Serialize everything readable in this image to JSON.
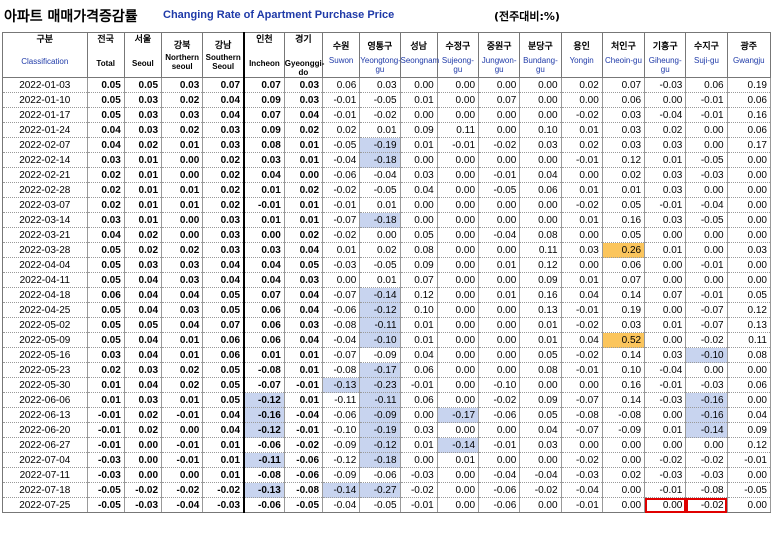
{
  "title": {
    "korean": "아파트 매매가격증감률",
    "english": "Changing Rate of Apartment Purchase Price",
    "unit": "(전주대비:%)"
  },
  "columns": [
    {
      "ko": "구분",
      "en": "Classification"
    },
    {
      "ko": "전국",
      "en": "Total"
    },
    {
      "ko": "서울",
      "en": "Seoul"
    },
    {
      "ko": "강북",
      "en": "Northern seoul"
    },
    {
      "ko": "강남",
      "en": "Southern Seoul"
    },
    {
      "ko": "인천",
      "en": "Incheon"
    },
    {
      "ko": "경기",
      "en": "Gyeonggi-do"
    },
    {
      "ko": "수원",
      "en": "Suwon"
    },
    {
      "ko": "영통구",
      "en": "Yeongtong-gu"
    },
    {
      "ko": "성남",
      "en": "Seongnam"
    },
    {
      "ko": "수정구",
      "en": "Sujeong-gu"
    },
    {
      "ko": "중원구",
      "en": "Jungwon-gu"
    },
    {
      "ko": "분당구",
      "en": "Bundang-gu"
    },
    {
      "ko": "용인",
      "en": "Yongin"
    },
    {
      "ko": "처인구",
      "en": "Cheoin-gu"
    },
    {
      "ko": "기흥구",
      "en": "Giheung-gu"
    },
    {
      "ko": "수지구",
      "en": "Suji-gu"
    },
    {
      "ko": "광주",
      "en": "Gwangju"
    }
  ],
  "highlight_colors": {
    "blue": "#c8d4ef",
    "orange": "#fbc55c",
    "red_box": "#e00000"
  },
  "rows": [
    {
      "date": "2022-01-03",
      "values": [
        "0.05",
        "0.05",
        "0.03",
        "0.07",
        "0.07",
        "0.03",
        "0.06",
        "0.03",
        "0.00",
        "0.00",
        "0.00",
        "0.00",
        "0.02",
        "0.07",
        "-0.03",
        "0.06",
        "0.19"
      ]
    },
    {
      "date": "2022-01-10",
      "values": [
        "0.05",
        "0.03",
        "0.02",
        "0.04",
        "0.09",
        "0.03",
        "-0.01",
        "-0.05",
        "0.01",
        "0.00",
        "0.07",
        "0.00",
        "0.00",
        "0.06",
        "0.00",
        "-0.01",
        "0.06"
      ]
    },
    {
      "date": "2022-01-17",
      "values": [
        "0.05",
        "0.03",
        "0.03",
        "0.04",
        "0.07",
        "0.04",
        "-0.01",
        "-0.02",
        "0.00",
        "0.00",
        "0.00",
        "0.00",
        "-0.02",
        "0.03",
        "-0.04",
        "-0.01",
        "0.16"
      ]
    },
    {
      "date": "2022-01-24",
      "values": [
        "0.04",
        "0.03",
        "0.02",
        "0.03",
        "0.09",
        "0.02",
        "0.02",
        "0.01",
        "0.09",
        "0.11",
        "0.00",
        "0.10",
        "0.01",
        "0.03",
        "0.02",
        "0.00",
        "0.06"
      ]
    },
    {
      "date": "2022-02-07",
      "values": [
        "0.04",
        "0.02",
        "0.01",
        "0.03",
        "0.08",
        "0.01",
        "-0.05",
        "-0.19",
        "0.01",
        "-0.01",
        "-0.02",
        "0.03",
        "0.02",
        "0.03",
        "0.03",
        "0.00",
        "0.17"
      ]
    },
    {
      "date": "2022-02-14",
      "values": [
        "0.03",
        "0.01",
        "0.00",
        "0.02",
        "0.03",
        "0.01",
        "-0.04",
        "-0.18",
        "0.00",
        "0.00",
        "0.00",
        "0.00",
        "-0.01",
        "0.12",
        "0.01",
        "-0.05",
        "0.00"
      ]
    },
    {
      "date": "2022-02-21",
      "values": [
        "0.02",
        "0.01",
        "0.00",
        "0.02",
        "0.04",
        "0.00",
        "-0.06",
        "-0.04",
        "0.03",
        "0.00",
        "-0.01",
        "0.04",
        "0.00",
        "0.02",
        "0.03",
        "-0.03",
        "0.00"
      ]
    },
    {
      "date": "2022-02-28",
      "values": [
        "0.02",
        "0.01",
        "0.01",
        "0.02",
        "0.01",
        "0.02",
        "-0.02",
        "-0.05",
        "0.04",
        "0.00",
        "-0.05",
        "0.06",
        "0.01",
        "0.01",
        "0.03",
        "0.00",
        "0.00"
      ]
    },
    {
      "date": "2022-03-07",
      "values": [
        "0.02",
        "0.01",
        "0.01",
        "0.02",
        "-0.01",
        "0.01",
        "-0.01",
        "0.01",
        "0.00",
        "0.00",
        "0.00",
        "0.00",
        "-0.02",
        "0.05",
        "-0.01",
        "-0.04",
        "0.00"
      ]
    },
    {
      "date": "2022-03-14",
      "values": [
        "0.03",
        "0.01",
        "0.00",
        "0.03",
        "0.01",
        "0.01",
        "-0.07",
        "-0.18",
        "0.00",
        "0.00",
        "0.00",
        "0.00",
        "0.01",
        "0.16",
        "0.03",
        "-0.05",
        "0.00"
      ]
    },
    {
      "date": "2022-03-21",
      "values": [
        "0.04",
        "0.02",
        "0.00",
        "0.03",
        "0.00",
        "0.02",
        "-0.02",
        "0.00",
        "0.05",
        "0.00",
        "-0.04",
        "0.08",
        "0.00",
        "0.05",
        "0.00",
        "0.00",
        "0.00"
      ]
    },
    {
      "date": "2022-03-28",
      "values": [
        "0.05",
        "0.02",
        "0.02",
        "0.03",
        "0.03",
        "0.04",
        "0.01",
        "0.02",
        "0.08",
        "0.00",
        "0.00",
        "0.11",
        "0.03",
        "0.26",
        "0.01",
        "0.00",
        "0.03"
      ]
    },
    {
      "date": "2022-04-04",
      "values": [
        "0.05",
        "0.03",
        "0.03",
        "0.04",
        "0.04",
        "0.05",
        "-0.03",
        "-0.05",
        "0.09",
        "0.00",
        "0.01",
        "0.12",
        "0.00",
        "0.06",
        "0.00",
        "-0.01",
        "0.00"
      ]
    },
    {
      "date": "2022-04-11",
      "values": [
        "0.05",
        "0.04",
        "0.03",
        "0.04",
        "0.04",
        "0.03",
        "0.00",
        "0.01",
        "0.07",
        "0.00",
        "0.00",
        "0.09",
        "0.01",
        "0.07",
        "0.00",
        "0.00",
        "0.00"
      ]
    },
    {
      "date": "2022-04-18",
      "values": [
        "0.06",
        "0.04",
        "0.04",
        "0.05",
        "0.07",
        "0.04",
        "-0.07",
        "-0.14",
        "0.12",
        "0.00",
        "0.01",
        "0.16",
        "0.04",
        "0.14",
        "0.07",
        "-0.01",
        "0.05"
      ]
    },
    {
      "date": "2022-04-25",
      "values": [
        "0.05",
        "0.04",
        "0.03",
        "0.05",
        "0.06",
        "0.04",
        "-0.06",
        "-0.12",
        "0.10",
        "0.00",
        "0.00",
        "0.13",
        "-0.01",
        "0.19",
        "0.00",
        "-0.07",
        "0.12"
      ]
    },
    {
      "date": "2022-05-02",
      "values": [
        "0.05",
        "0.05",
        "0.04",
        "0.07",
        "0.06",
        "0.03",
        "-0.08",
        "-0.11",
        "0.01",
        "0.00",
        "0.00",
        "0.01",
        "-0.02",
        "0.03",
        "0.01",
        "-0.07",
        "0.13"
      ]
    },
    {
      "date": "2022-05-09",
      "values": [
        "0.05",
        "0.04",
        "0.01",
        "0.06",
        "0.06",
        "0.04",
        "-0.04",
        "-0.10",
        "0.01",
        "0.00",
        "0.00",
        "0.01",
        "0.04",
        "0.52",
        "0.00",
        "-0.02",
        "0.11"
      ]
    },
    {
      "date": "2022-05-16",
      "values": [
        "0.03",
        "0.04",
        "0.01",
        "0.06",
        "0.01",
        "0.01",
        "-0.07",
        "-0.09",
        "0.04",
        "0.00",
        "0.00",
        "0.05",
        "-0.02",
        "0.14",
        "0.03",
        "-0.10",
        "0.08"
      ]
    },
    {
      "date": "2022-05-23",
      "values": [
        "0.02",
        "0.03",
        "0.02",
        "0.05",
        "-0.08",
        "0.01",
        "-0.08",
        "-0.17",
        "0.06",
        "0.00",
        "0.00",
        "0.08",
        "-0.01",
        "0.10",
        "-0.04",
        "0.00",
        "0.00"
      ]
    },
    {
      "date": "2022-05-30",
      "values": [
        "0.01",
        "0.04",
        "0.02",
        "0.05",
        "-0.07",
        "-0.01",
        "-0.13",
        "-0.23",
        "-0.01",
        "0.00",
        "-0.10",
        "0.00",
        "0.00",
        "0.16",
        "-0.01",
        "-0.03",
        "0.06"
      ]
    },
    {
      "date": "2022-06-06",
      "values": [
        "0.01",
        "0.03",
        "0.01",
        "0.05",
        "-0.12",
        "0.01",
        "-0.11",
        "-0.11",
        "0.06",
        "0.00",
        "-0.02",
        "0.09",
        "-0.07",
        "0.14",
        "-0.03",
        "-0.16",
        "0.00"
      ]
    },
    {
      "date": "2022-06-13",
      "values": [
        "-0.01",
        "0.02",
        "-0.01",
        "0.04",
        "-0.16",
        "-0.04",
        "-0.06",
        "-0.09",
        "0.00",
        "-0.17",
        "-0.06",
        "0.05",
        "-0.08",
        "-0.08",
        "0.00",
        "-0.16",
        "0.04"
      ]
    },
    {
      "date": "2022-06-20",
      "values": [
        "-0.01",
        "0.02",
        "0.00",
        "0.04",
        "-0.12",
        "-0.01",
        "-0.10",
        "-0.19",
        "0.03",
        "0.00",
        "0.00",
        "0.04",
        "-0.07",
        "-0.09",
        "0.01",
        "-0.14",
        "0.09"
      ]
    },
    {
      "date": "2022-06-27",
      "values": [
        "-0.01",
        "0.00",
        "-0.01",
        "0.01",
        "-0.06",
        "-0.02",
        "-0.09",
        "-0.12",
        "0.01",
        "-0.14",
        "-0.01",
        "0.03",
        "0.00",
        "0.00",
        "0.00",
        "0.00",
        "0.12"
      ]
    },
    {
      "date": "2022-07-04",
      "values": [
        "-0.03",
        "0.00",
        "-0.01",
        "0.01",
        "-0.11",
        "-0.06",
        "-0.12",
        "-0.18",
        "0.00",
        "0.01",
        "0.00",
        "0.00",
        "-0.02",
        "0.00",
        "-0.02",
        "-0.02",
        "-0.01"
      ]
    },
    {
      "date": "2022-07-11",
      "values": [
        "-0.03",
        "0.00",
        "0.00",
        "0.01",
        "-0.08",
        "-0.06",
        "-0.09",
        "-0.06",
        "-0.03",
        "0.00",
        "-0.04",
        "-0.04",
        "-0.03",
        "0.02",
        "-0.03",
        "-0.03",
        "0.00"
      ]
    },
    {
      "date": "2022-07-18",
      "values": [
        "-0.05",
        "-0.02",
        "-0.02",
        "-0.02",
        "-0.13",
        "-0.08",
        "-0.14",
        "-0.27",
        "-0.02",
        "0.00",
        "-0.06",
        "-0.02",
        "-0.04",
        "0.00",
        "-0.01",
        "-0.08",
        "-0.05"
      ]
    },
    {
      "date": "2022-07-25",
      "values": [
        "-0.05",
        "-0.03",
        "-0.04",
        "-0.03",
        "-0.06",
        "-0.05",
        "-0.04",
        "-0.05",
        "-0.01",
        "0.00",
        "-0.06",
        "0.00",
        "-0.01",
        "0.00",
        "0.00",
        "-0.02",
        "0.00"
      ]
    }
  ]
}
